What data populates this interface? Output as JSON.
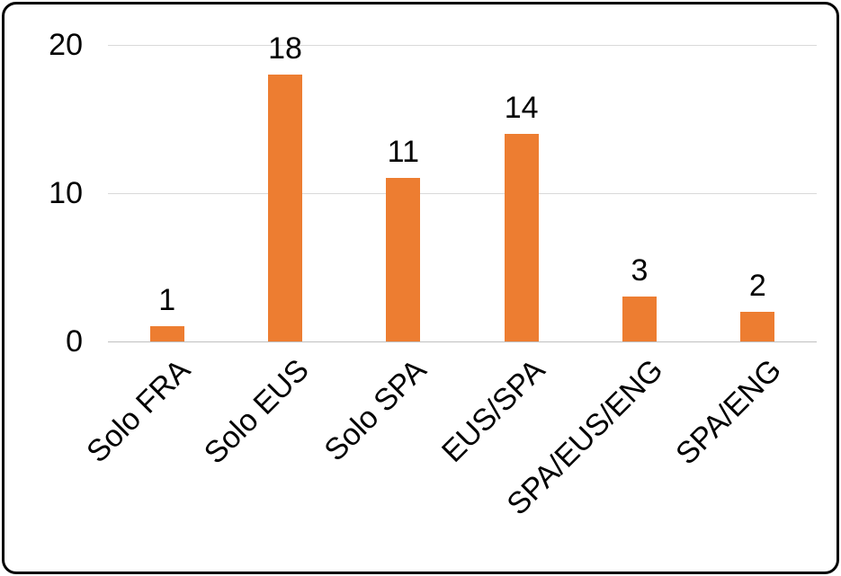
{
  "chart_data": {
    "type": "bar",
    "title": "",
    "xlabel": "",
    "ylabel": "",
    "categories": [
      "Solo FRA",
      "Solo EUS",
      "Solo SPA",
      "EUS/SPA",
      "SPA/EUS/ENG",
      "SPA/ENG"
    ],
    "values": [
      1,
      18,
      11,
      14,
      3,
      2
    ],
    "data_labels": [
      1,
      18,
      11,
      14,
      3,
      2
    ],
    "ylim": [
      0,
      20
    ],
    "yticks": [
      0,
      10,
      20
    ],
    "grid": true,
    "legend": "none",
    "colors": {
      "bar": "#ED7D31",
      "gridline": "#D9D9D9",
      "axis_line": "#BFBFBF",
      "text": "#000000",
      "frame_border": "#000000",
      "background": "#FFFFFF"
    }
  }
}
